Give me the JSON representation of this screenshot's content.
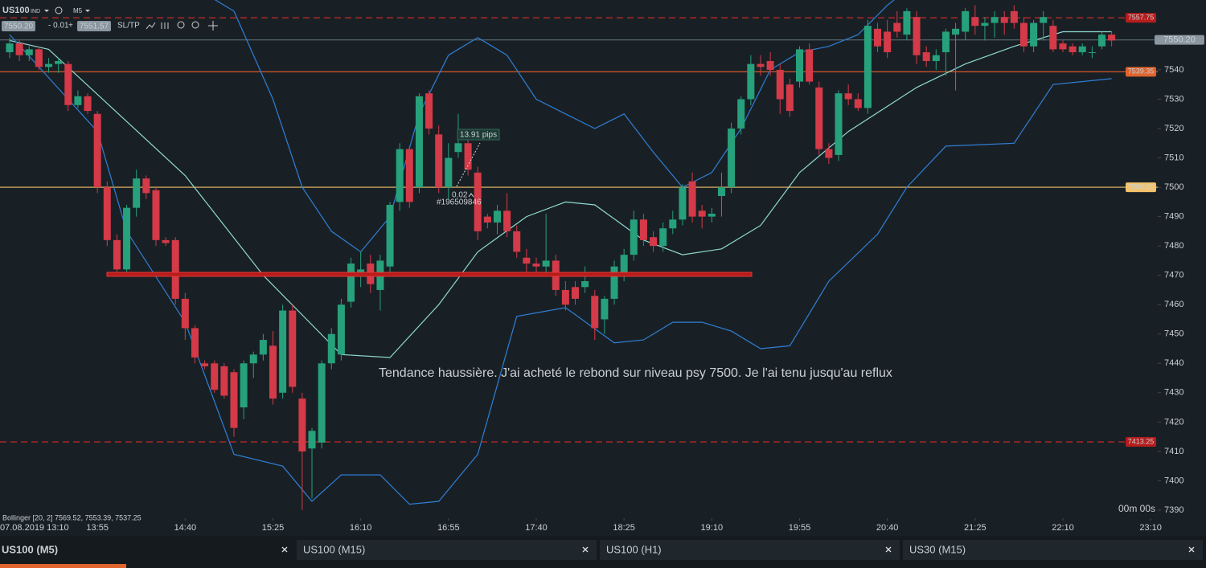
{
  "toolbar": {
    "symbol": "US100",
    "badge": "IND",
    "timeframe": "M5",
    "bid": "7550.20",
    "spread": "- 0.01",
    "plus": "+",
    "ask": "7551.57",
    "sltp": "SL/TP"
  },
  "chart_data": {
    "type": "candlestick",
    "up_color": "#26a17b",
    "down_color": "#d43a48",
    "xlim": [
      -0.99,
      117.73
    ],
    "ylim": [
      7387.25,
      7563.8
    ],
    "grid": false,
    "yticks": [
      7390,
      7400,
      7410,
      7420,
      7430,
      7440,
      7450,
      7460,
      7470,
      7480,
      7490,
      7500,
      7510,
      7520,
      7530,
      7540
    ],
    "xticks": [
      {
        "value": 0,
        "label": "07.08.2019 13:10"
      },
      {
        "value": 9,
        "label": "13:55"
      },
      {
        "value": 18,
        "label": "14:40"
      },
      {
        "value": 27,
        "label": "15:25"
      },
      {
        "value": 36,
        "label": "16:10"
      },
      {
        "value": 45,
        "label": "16:55"
      },
      {
        "value": 54,
        "label": "17:40"
      },
      {
        "value": 63,
        "label": "18:25"
      },
      {
        "value": 72,
        "label": "19:10"
      },
      {
        "value": 81,
        "label": "19:55"
      },
      {
        "value": 90,
        "label": "20:40"
      },
      {
        "value": 99,
        "label": "21:25"
      },
      {
        "value": 108,
        "label": "22:10"
      },
      {
        "value": 117,
        "label": "23:10"
      }
    ],
    "open": [
      7546,
      7549,
      7545,
      7547,
      7541,
      7542,
      7542,
      7528,
      7531,
      7525,
      7500,
      7482,
      7472,
      7493,
      7503,
      7499,
      7482,
      7482,
      7462,
      7452,
      7440,
      7440,
      7439,
      7437,
      7425,
      7440,
      7443,
      7446,
      7430,
      7458,
      7428,
      7411,
      7413,
      7440,
      7443,
      7461,
      7470,
      7474,
      7465,
      7473,
      7495,
      7513,
      7500,
      7532,
      7518,
      7500,
      7512,
      7515,
      7505,
      7490,
      7488,
      7492,
      7485,
      7476,
      7474,
      7473,
      7475,
      7465,
      7466,
      7466,
      7463,
      7455,
      7462,
      7471,
      7477,
      7489,
      7483,
      7480,
      7486,
      7489,
      7502,
      7492,
      7490,
      7497,
      7500,
      7520,
      7530,
      7542,
      7543,
      7540,
      7535,
      7536,
      7547,
      7534,
      7513,
      7511,
      7532,
      7530,
      7527,
      7554,
      7553,
      7556,
      7552,
      7558,
      7546,
      7543,
      7546,
      7552,
      7553,
      7558,
      7555,
      7556,
      7558,
      7560,
      7556,
      7548,
      7556,
      7555,
      7549,
      7548,
      7546,
      7546,
      7548,
      7552
    ],
    "high": [
      7551,
      7550,
      7548,
      7548,
      7544,
      7544,
      7543,
      7533,
      7532,
      7526,
      7502,
      7484,
      7494,
      7506,
      7504,
      7500,
      7483,
      7483,
      7464,
      7453,
      7441,
      7441,
      7440,
      7438,
      7441,
      7444,
      7450,
      7451,
      7460,
      7460,
      7430,
      7418,
      7441,
      7452,
      7462,
      7476,
      7478,
      7477,
      7477,
      7495,
      7515,
      7514,
      7532,
      7533,
      7521,
      7515,
      7525,
      7517,
      7507,
      7491,
      7494,
      7498,
      7487,
      7479,
      7476,
      7491,
      7477,
      7468,
      7468,
      7473,
      7465,
      7463,
      7475,
      7479,
      7492,
      7491,
      7485,
      7488,
      7492,
      7501,
      7505,
      7494,
      7493,
      7505,
      7522,
      7531,
      7545,
      7545,
      7546,
      7542,
      7537,
      7548,
      7549,
      7536,
      7515,
      7533,
      7535,
      7532,
      7557,
      7556,
      7557,
      7560,
      7561,
      7560,
      7548,
      7547,
      7554,
      7556,
      7561,
      7562,
      7558,
      7560,
      7560,
      7562,
      7558,
      7557,
      7560,
      7557,
      7550,
      7549,
      7549,
      7548,
      7553,
      7553
    ],
    "low": [
      7544,
      7543,
      7543,
      7540,
      7539,
      7539,
      7526,
      7527,
      7525,
      7498,
      7480,
      7470,
      7471,
      7490,
      7496,
      7480,
      7480,
      7460,
      7448,
      7440,
      7438,
      7430,
      7428,
      7415,
      7421,
      7435,
      7441,
      7426,
      7428,
      7430,
      7390,
      7394,
      7411,
      7438,
      7441,
      7459,
      7466,
      7464,
      7458,
      7470,
      7492,
      7493,
      7498,
      7518,
      7498,
      7496,
      7510,
      7504,
      7482,
      7486,
      7484,
      7483,
      7476,
      7470,
      7470,
      7470,
      7463,
      7458,
      7460,
      7464,
      7448,
      7450,
      7460,
      7468,
      7475,
      7480,
      7478,
      7478,
      7484,
      7487,
      7488,
      7486,
      7488,
      7490,
      7498,
      7518,
      7528,
      7538,
      7538,
      7525,
      7524,
      7534,
      7535,
      7511,
      7508,
      7509,
      7528,
      7526,
      7525,
      7546,
      7544,
      7551,
      7550,
      7542,
      7541,
      7540,
      7538,
      7533,
      7550,
      7552,
      7550,
      7551,
      7552,
      7554,
      7546,
      7546,
      7550,
      7546,
      7546,
      7545,
      7545,
      7544,
      7547,
      7548
    ],
    "close": [
      7549,
      7545,
      7547,
      7541,
      7542,
      7543,
      7528,
      7531,
      7526,
      7500,
      7482,
      7472,
      7493,
      7503,
      7498,
      7482,
      7481,
      7462,
      7452,
      7442,
      7439,
      7431,
      7429,
      7418,
      7440,
      7443,
      7448,
      7428,
      7458,
      7432,
      7410,
      7417,
      7440,
      7450,
      7460,
      7474,
      7472,
      7467,
      7475,
      7494,
      7513,
      7495,
      7531,
      7520,
      7500,
      7510,
      7515,
      7506,
      7485,
      7488,
      7492,
      7485,
      7478,
      7474,
      7473,
      7475,
      7465,
      7460,
      7462,
      7468,
      7452,
      7462,
      7473,
      7477,
      7489,
      7482,
      7480,
      7486,
      7489,
      7500,
      7490,
      7490,
      7491,
      7500,
      7520,
      7530,
      7542,
      7541,
      7540,
      7530,
      7526,
      7547,
      7536,
      7513,
      7510,
      7532,
      7530,
      7527,
      7555,
      7548,
      7546,
      7553,
      7560,
      7545,
      7543,
      7545,
      7553,
      7554,
      7560,
      7555,
      7556,
      7558,
      7556,
      7556,
      7548,
      7556,
      7558,
      7547,
      7547,
      7546,
      7548,
      7546,
      7552,
      7550
    ],
    "bands": [
      {
        "color": "#2f7fd6",
        "x": [
          0,
          6,
          12,
          18,
          23,
          27,
          30,
          33,
          36,
          39,
          42,
          45,
          48,
          51,
          54,
          57,
          60,
          63,
          66,
          69,
          72,
          75,
          78,
          81,
          84,
          87,
          90,
          93,
          96,
          99,
          102,
          105,
          108,
          111,
          113
        ],
        "values": [
          7565,
          7580,
          7575,
          7570,
          7560,
          7530,
          7500,
          7485,
          7478,
          7490,
          7525,
          7545,
          7551,
          7545,
          7530,
          7525,
          7520,
          7525,
          7512,
          7500,
          7505,
          7520,
          7540,
          7546,
          7548,
          7552,
          7562,
          7570,
          7572,
          7572,
          7570,
          7568,
          7568,
          7569,
          7569.5
        ]
      },
      {
        "color": "#8fd9d2",
        "x": [
          0,
          4,
          18,
          26,
          34,
          39,
          44,
          48,
          53,
          57,
          60,
          65,
          69,
          73,
          77,
          81,
          86,
          93,
          98,
          103,
          108,
          113
        ],
        "values": [
          7550,
          7547,
          7504,
          7470,
          7443,
          7442,
          7460,
          7478,
          7490,
          7495,
          7494,
          7482,
          7477,
          7479,
          7487,
          7505,
          7519,
          7534,
          7542,
          7548,
          7553,
          7553
        ]
      },
      {
        "color": "#2f7fd6",
        "x": [
          0,
          6,
          9,
          12,
          18,
          23,
          28,
          31,
          34,
          38,
          41,
          44,
          48,
          52,
          57,
          62,
          65,
          68,
          71,
          74,
          77,
          80,
          84,
          89,
          92,
          96,
          103,
          107,
          113
        ],
        "values": [
          7552,
          7530,
          7519,
          7485,
          7454,
          7409,
          7405,
          7393,
          7402,
          7402,
          7392,
          7393,
          7409,
          7456,
          7459,
          7447,
          7448,
          7454,
          7454,
          7451,
          7445,
          7446,
          7468,
          7484,
          7500,
          7514,
          7515,
          7535,
          7537
        ]
      }
    ],
    "levels": [
      {
        "value": 7557.75,
        "color": "#c62828",
        "label_bg": "#b71c1c",
        "dash": true
      },
      {
        "value": 7550.2,
        "label": "7550.20",
        "color": "#5b6b75",
        "label_bg": "#8a96a0",
        "dash": false
      },
      {
        "value": 7539.35,
        "color": "#e8602c",
        "label_bg": "#e0642e",
        "dash": false
      },
      {
        "value": 7500,
        "label": "7500.00",
        "color": "#f4c26b",
        "label_bg": "#f4c26b",
        "dash": false
      },
      {
        "value": 7413.25,
        "color": "#c62828",
        "label_bg": "#b71c1c",
        "dash": true
      }
    ],
    "annotations": {
      "note": "Tendance haussière. J'ai acheté le rebond sur niveau psy 7500. Je l'ai tenu jusqu'au reflux",
      "pips": "13.91 pips",
      "lot": "0.02",
      "ticket": "#196509846"
    },
    "indicator_label": "Bollinger [20, 2] 7569.52, 7553.39, 7537.25",
    "timer": "00m 00s"
  },
  "tabs": [
    {
      "label": "US100 (M5)"
    },
    {
      "label": "US100 (M15)"
    },
    {
      "label": "US100 (H1)"
    },
    {
      "label": "US30 (M15)"
    }
  ]
}
